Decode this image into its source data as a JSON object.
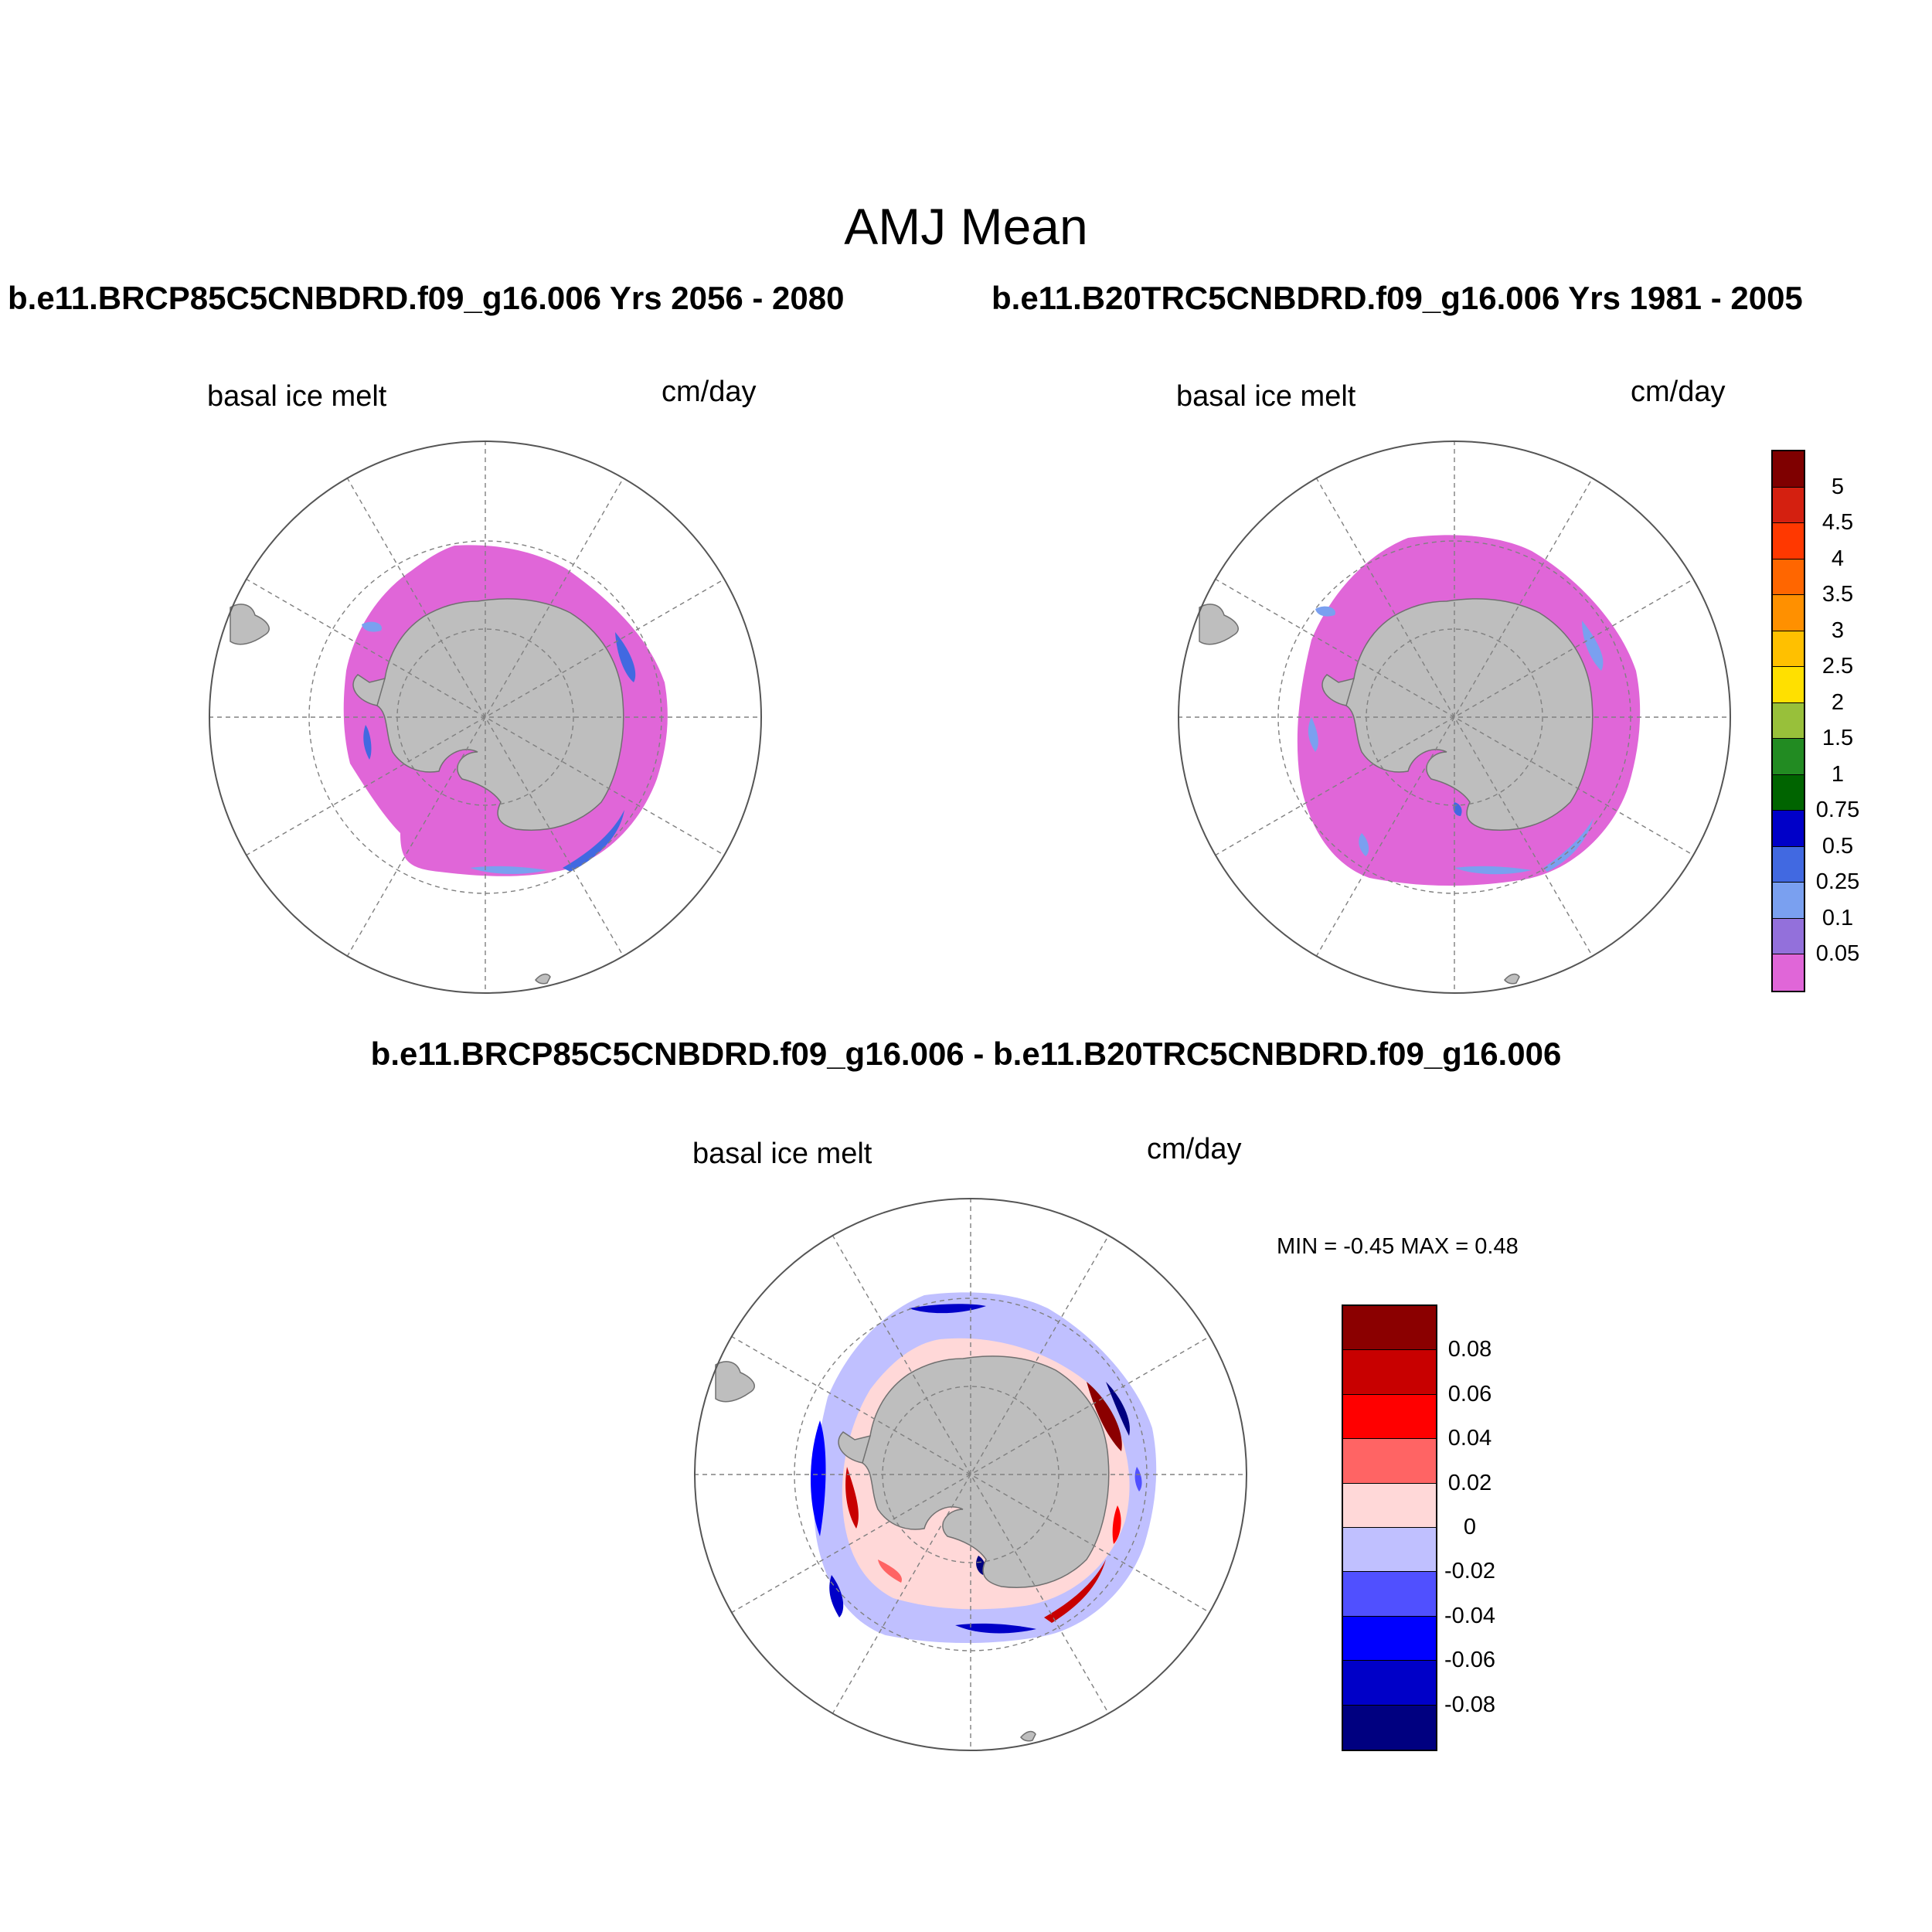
{
  "figure": {
    "title": "AMJ Mean",
    "top_left_case": "b.e11.BRCP85C5CNBDRD.f09_g16.006  Yrs 2056 - 2080",
    "top_right_case": "b.e11.B20TRC5CNBDRD.f09_g16.006  Yrs 1981 - 2005",
    "diff_case": "b.e11.BRCP85C5CNBDRD.f09_g16.006 - b.e11.B20TRC5CNBDRD.f09_g16.006"
  },
  "panels": {
    "top_left": {
      "variable": "basal ice melt",
      "units": "cm/day"
    },
    "top_right": {
      "variable": "basal ice melt",
      "units": "cm/day"
    },
    "diff": {
      "variable": "basal ice melt",
      "units": "cm/day",
      "min_max": "MIN =  -0.45 MAX =   0.48"
    }
  },
  "colorbar_main": {
    "labels": [
      "5",
      "4.5",
      "4",
      "3.5",
      "3",
      "2.5",
      "2",
      "1.5",
      "1",
      "0.75",
      "0.5",
      "0.25",
      "0.1",
      "0.05"
    ],
    "colors": [
      "#7f0000",
      "#d42010",
      "#ff3800",
      "#ff6600",
      "#ff9000",
      "#ffc000",
      "#ffe000",
      "#98c03a",
      "#228b22",
      "#006400",
      "#0000c8",
      "#4169e1",
      "#7aa0f0",
      "#9370db",
      "#e066d8"
    ]
  },
  "colorbar_diff": {
    "labels": [
      "0.08",
      "0.06",
      "0.04",
      "0.02",
      "0",
      "-0.02",
      "-0.04",
      "-0.06",
      "-0.08"
    ],
    "colors": [
      "#8b0000",
      "#c80000",
      "#ff0000",
      "#ff6464",
      "#ffd8d8",
      "#c0c0ff",
      "#5050ff",
      "#0000ff",
      "#0000c8",
      "#000080"
    ]
  }
}
